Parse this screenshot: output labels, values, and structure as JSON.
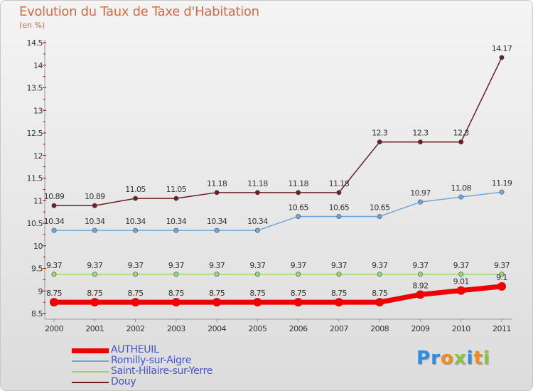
{
  "title": "Evolution du Taux de Taxe d'Habitation",
  "subtitle": "(en %)",
  "logo": {
    "text": "Proxiti",
    "letters": [
      {
        "ch": "P",
        "color": "#2e8fe0"
      },
      {
        "ch": "r",
        "color": "#2e8fe0"
      },
      {
        "ch": "o",
        "color": "#f28c1e"
      },
      {
        "ch": "x",
        "color": "#8bc43f"
      },
      {
        "ch": "i",
        "color": "#2e8fe0"
      },
      {
        "ch": "t",
        "color": "#f28c1e"
      },
      {
        "ch": "i",
        "color": "#8bc43f"
      }
    ]
  },
  "chart_data": {
    "type": "line",
    "x": [
      "2000",
      "2001",
      "2002",
      "2003",
      "2004",
      "2005",
      "2006",
      "2007",
      "2008",
      "2009",
      "2010",
      "2011"
    ],
    "ylim": [
      8.5,
      14.5
    ],
    "yticks": [
      "8.5",
      "9",
      "9.5",
      "10",
      "10.5",
      "11",
      "11.5",
      "12",
      "12.5",
      "13",
      "13.5",
      "14",
      "14.5"
    ],
    "grid": false,
    "legend_position": "bottom-left",
    "series": [
      {
        "name": "Douy",
        "color": "#6b1f24",
        "values": [
          10.89,
          10.89,
          11.05,
          11.05,
          11.18,
          11.18,
          11.18,
          11.18,
          12.3,
          12.3,
          12.3,
          14.17
        ],
        "labels": [
          "10.89",
          "10.89",
          "11.05",
          "11.05",
          "11.18",
          "11.18",
          "11.18",
          "11.18",
          "12.3",
          "12.3",
          "12.3",
          "14.17"
        ]
      },
      {
        "name": "Romilly-sur-Aigre",
        "color": "#6fa6d6",
        "values": [
          10.34,
          10.34,
          10.34,
          10.34,
          10.34,
          10.34,
          10.65,
          10.65,
          10.65,
          10.97,
          11.08,
          11.19
        ],
        "labels": [
          "10.34",
          "10.34",
          "10.34",
          "10.34",
          "10.34",
          "10.34",
          "10.65",
          "10.65",
          "10.65",
          "10.97",
          "11.08",
          "11.19"
        ]
      },
      {
        "name": "Saint-Hilaire-sur-Yerre",
        "color": "#9ad66a",
        "values": [
          9.37,
          9.37,
          9.37,
          9.37,
          9.37,
          9.37,
          9.37,
          9.37,
          9.37,
          9.37,
          9.37,
          9.37
        ],
        "labels": [
          "9.37",
          "9.37",
          "9.37",
          "9.37",
          "9.37",
          "9.37",
          "9.37",
          "9.37",
          "9.37",
          "9.37",
          "9.37",
          "9.37"
        ]
      },
      {
        "name": "AUTHEUIL",
        "color": "#ee0000",
        "values": [
          8.75,
          8.75,
          8.75,
          8.75,
          8.75,
          8.75,
          8.75,
          8.75,
          8.75,
          8.92,
          9.01,
          9.1
        ],
        "labels": [
          "8.75",
          "8.75",
          "8.75",
          "8.75",
          "8.75",
          "8.75",
          "8.75",
          "8.75",
          "8.75",
          "8.92",
          "9.01",
          "9.1"
        ]
      }
    ],
    "legend_order": [
      "AUTHEUIL",
      "Romilly-sur-Aigre",
      "Saint-Hilaire-sur-Yerre",
      "Douy"
    ]
  }
}
